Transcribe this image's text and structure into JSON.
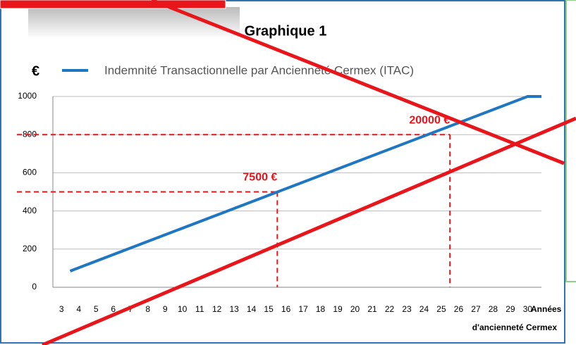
{
  "chart_data": {
    "type": "line",
    "title": "Graphique 1",
    "ylabel": "€",
    "xlabel": [
      "Années",
      "d'ancienneté  Cermex"
    ],
    "series": [
      {
        "name": "Indemnité Transactionnelle par Ancienneté Cermex (ITAC)",
        "color": "#1f77c4",
        "x": [
          3.5,
          30,
          30.8
        ],
        "values": [
          85,
          1000,
          1000
        ]
      }
    ],
    "xlim": [
      2.5,
      30.8
    ],
    "xticks": [
      3,
      4,
      5,
      6,
      7,
      8,
      9,
      10,
      11,
      12,
      13,
      14,
      15,
      16,
      17,
      18,
      19,
      20,
      21,
      22,
      23,
      24,
      25,
      26,
      27,
      28,
      29,
      30
    ],
    "ylim": [
      0,
      1000
    ],
    "yticks": [
      0,
      200,
      400,
      600,
      800,
      1000
    ],
    "grid": true,
    "legend": "top",
    "annotations": [
      {
        "text": "7500 €",
        "x": 15.5,
        "y": 500,
        "color": "#e8151b"
      },
      {
        "text": "20000 €",
        "x": 25.5,
        "y": 800,
        "color": "#e8151b"
      }
    ]
  }
}
